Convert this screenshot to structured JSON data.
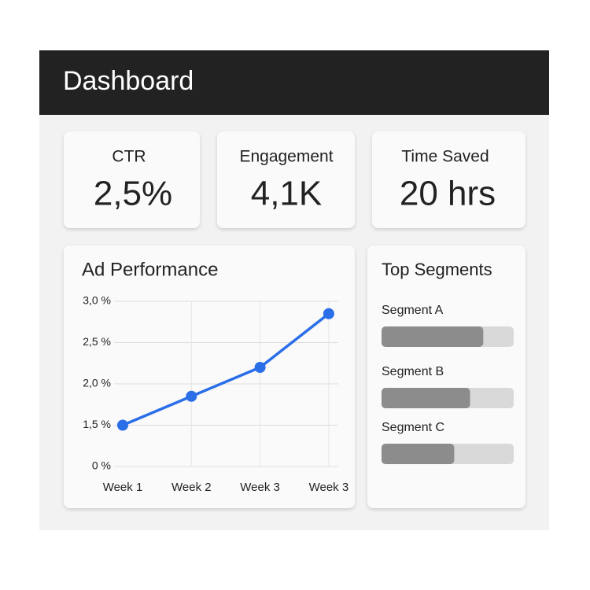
{
  "header": {
    "title": "Dashboard"
  },
  "kpis": [
    {
      "label": "CTR",
      "value": "2,5%"
    },
    {
      "label": "Engagement",
      "value": "4,1K"
    },
    {
      "label": "Time Saved",
      "value": "20 hrs"
    }
  ],
  "chart_data": {
    "type": "line",
    "title": "Ad Performance",
    "categories": [
      "Week 1",
      "Week 2",
      "Week 3",
      "Week 3"
    ],
    "values": [
      1.5,
      1.85,
      2.2,
      2.85
    ],
    "color": "#2a6ee8",
    "ylim": [
      0,
      3
    ],
    "yticks": [
      {
        "value": 3,
        "label": "3,0 %"
      },
      {
        "value": 2.5,
        "label": "2,5 %"
      },
      {
        "value": 2,
        "label": "2,0 %"
      },
      {
        "value": 1.5,
        "label": "1,5 %"
      },
      {
        "value": 0,
        "label": "0 %"
      }
    ],
    "grid": true
  },
  "segments": {
    "title": "Top Segments",
    "xlim": [
      0,
      100
    ],
    "color": "#8c8c8c",
    "items": [
      {
        "name": "Segment A",
        "value": 77
      },
      {
        "name": "Segment B",
        "value": 67
      },
      {
        "name": "Segment C",
        "value": 55
      }
    ]
  }
}
